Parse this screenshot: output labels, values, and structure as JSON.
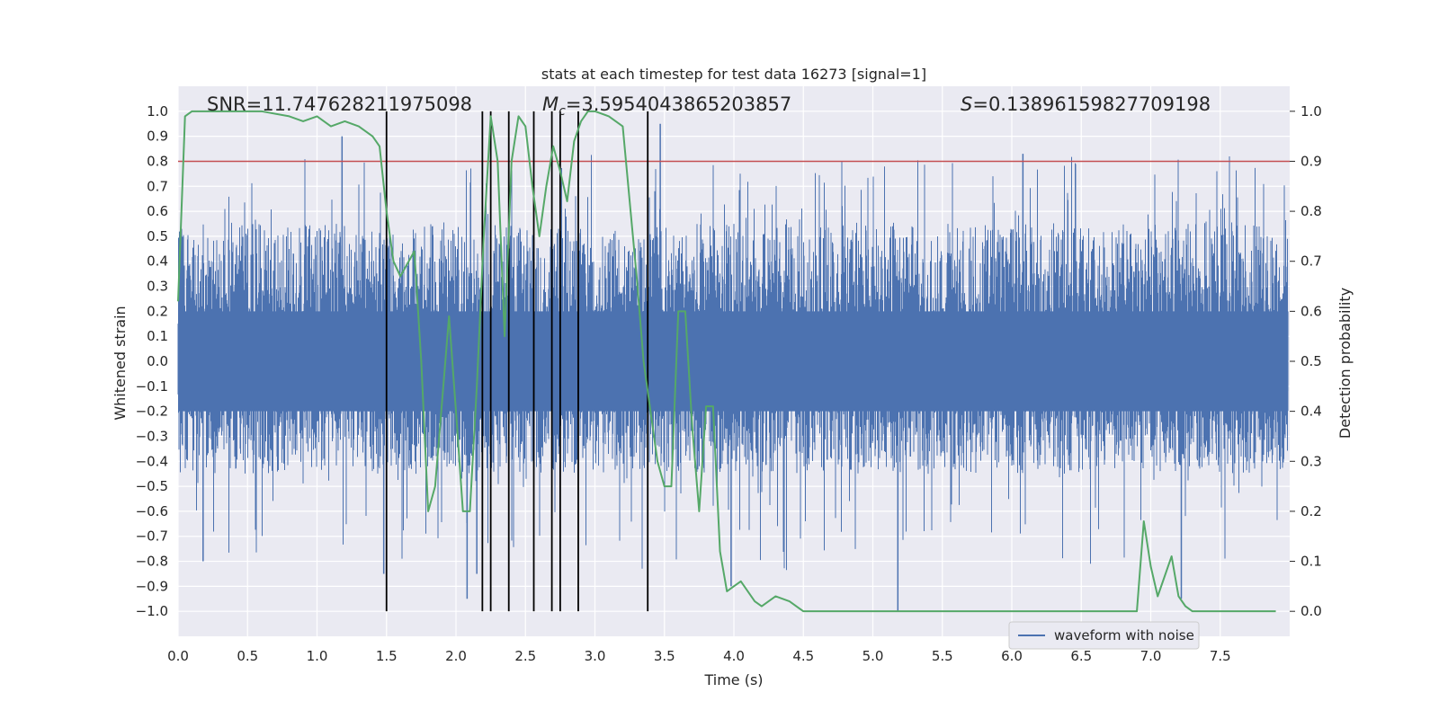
{
  "chart_data": {
    "type": "line",
    "title": "stats at each timestep for test data 16273 [signal=1]",
    "xlabel": "Time (s)",
    "ylabel": "Whitened strain",
    "ylabel_right": "Detection probability",
    "xlim": [
      0.0,
      8.0
    ],
    "ylim_left": [
      -1.1,
      1.1
    ],
    "ylim_right": [
      -0.05,
      1.05
    ],
    "x_ticks": [
      0.0,
      0.5,
      1.0,
      1.5,
      2.0,
      2.5,
      3.0,
      3.5,
      4.0,
      4.5,
      5.0,
      5.5,
      6.0,
      6.5,
      7.0,
      7.5
    ],
    "x_tick_labels": [
      "0.0",
      "0.5",
      "1.0",
      "1.5",
      "2.0",
      "2.5",
      "3.0",
      "3.5",
      "4.0",
      "4.5",
      "5.0",
      "5.5",
      "6.0",
      "6.5",
      "7.0",
      "7.5"
    ],
    "y_ticks_left": [
      1.0,
      0.9,
      0.8,
      0.7,
      0.6,
      0.5,
      0.4,
      0.3,
      0.2,
      0.1,
      0.0,
      -0.1,
      -0.2,
      -0.3,
      -0.4,
      -0.5,
      -0.6,
      -0.7,
      -0.8,
      -0.9,
      -1.0
    ],
    "y_tick_labels_left": [
      "1.0",
      "0.9",
      "0.8",
      "0.7",
      "0.6",
      "0.5",
      "0.4",
      "0.3",
      "0.2",
      "0.1",
      "0.0",
      "−0.1",
      "−0.2",
      "−0.3",
      "−0.4",
      "−0.5",
      "−0.6",
      "−0.7",
      "−0.8",
      "−0.9",
      "−1.0"
    ],
    "y_ticks_right": [
      1.0,
      0.9,
      0.8,
      0.7,
      0.6,
      0.5,
      0.4,
      0.3,
      0.2,
      0.1,
      0.0
    ],
    "y_tick_labels_right": [
      "1.0",
      "0.9",
      "0.8",
      "0.7",
      "0.6",
      "0.5",
      "0.4",
      "0.3",
      "0.2",
      "0.1",
      "0.0"
    ],
    "grid": true,
    "background_color": "#eaeaf2",
    "annotations": {
      "snr": "SNR=11.747628211975098",
      "mc_symbol": "M",
      "mc_sub": "c",
      "mc_value": "=3.5954043865203857",
      "s_symbol": "S",
      "s_value": "=0.13896159827709198"
    },
    "series": [
      {
        "name": "waveform with noise",
        "kind": "noise",
        "color": "#4c72b0",
        "axis": "left",
        "envelope": {
          "typical_min": -0.45,
          "typical_max": 0.55,
          "rare_min": -1.0,
          "rare_max": 0.95
        },
        "spikes": [
          {
            "x": 0.18,
            "y": -0.8
          },
          {
            "x": 1.18,
            "y": 0.9
          },
          {
            "x": 1.48,
            "y": -0.85
          },
          {
            "x": 2.08,
            "y": -0.95
          },
          {
            "x": 2.15,
            "y": -0.85
          },
          {
            "x": 3.47,
            "y": 0.95
          },
          {
            "x": 3.98,
            "y": -0.9
          },
          {
            "x": 5.18,
            "y": -1.0
          },
          {
            "x": 6.08,
            "y": 0.83
          },
          {
            "x": 7.22,
            "y": -0.95
          }
        ]
      },
      {
        "name": "",
        "kind": "probability",
        "color": "#55a868",
        "axis": "right",
        "x": [
          0.0,
          0.05,
          0.1,
          0.2,
          0.4,
          0.6,
          0.8,
          0.9,
          1.0,
          1.1,
          1.2,
          1.3,
          1.4,
          1.45,
          1.5,
          1.55,
          1.6,
          1.7,
          1.75,
          1.8,
          1.85,
          1.95,
          2.0,
          2.05,
          2.1,
          2.15,
          2.2,
          2.25,
          2.3,
          2.35,
          2.4,
          2.45,
          2.5,
          2.55,
          2.6,
          2.65,
          2.7,
          2.75,
          2.8,
          2.85,
          2.9,
          2.95,
          3.0,
          3.1,
          3.2,
          3.3,
          3.35,
          3.4,
          3.45,
          3.5,
          3.55,
          3.6,
          3.65,
          3.7,
          3.75,
          3.8,
          3.85,
          3.9,
          3.95,
          4.0,
          4.05,
          4.1,
          4.15,
          4.2,
          4.3,
          4.4,
          4.5,
          4.6,
          4.7,
          4.8,
          5.0,
          5.5,
          6.0,
          6.5,
          6.8,
          6.9,
          6.95,
          7.0,
          7.05,
          7.1,
          7.15,
          7.2,
          7.25,
          7.3,
          7.4,
          7.5,
          7.7,
          7.9
        ],
        "y": [
          0.62,
          0.99,
          1.0,
          1.0,
          1.0,
          1.0,
          0.99,
          0.98,
          0.99,
          0.97,
          0.98,
          0.97,
          0.95,
          0.93,
          0.8,
          0.7,
          0.67,
          0.72,
          0.5,
          0.2,
          0.25,
          0.59,
          0.4,
          0.2,
          0.2,
          0.45,
          0.75,
          0.99,
          0.9,
          0.55,
          0.9,
          0.99,
          0.97,
          0.85,
          0.75,
          0.85,
          0.93,
          0.88,
          0.82,
          0.94,
          0.98,
          1.0,
          1.0,
          0.99,
          0.97,
          0.67,
          0.5,
          0.4,
          0.3,
          0.25,
          0.25,
          0.6,
          0.6,
          0.37,
          0.2,
          0.41,
          0.41,
          0.12,
          0.04,
          0.05,
          0.06,
          0.04,
          0.02,
          0.01,
          0.03,
          0.02,
          0.0,
          0.0,
          0.0,
          0.0,
          0.0,
          0.0,
          0.0,
          0.0,
          0.0,
          0.0,
          0.18,
          0.09,
          0.03,
          0.07,
          0.11,
          0.03,
          0.01,
          0.0,
          0.0,
          0.0,
          0.0,
          0.0
        ]
      }
    ],
    "threshold": {
      "axis": "right",
      "value": 0.9,
      "color": "#c44e52"
    },
    "vertical_lines": {
      "x": [
        1.5,
        2.19,
        2.25,
        2.38,
        2.56,
        2.69,
        2.75,
        2.88,
        3.38
      ],
      "ymin": -1.0,
      "ymax": 1.0,
      "color": "#000000"
    },
    "legend": {
      "position": "lower-right",
      "entries": [
        "waveform with noise"
      ]
    }
  }
}
